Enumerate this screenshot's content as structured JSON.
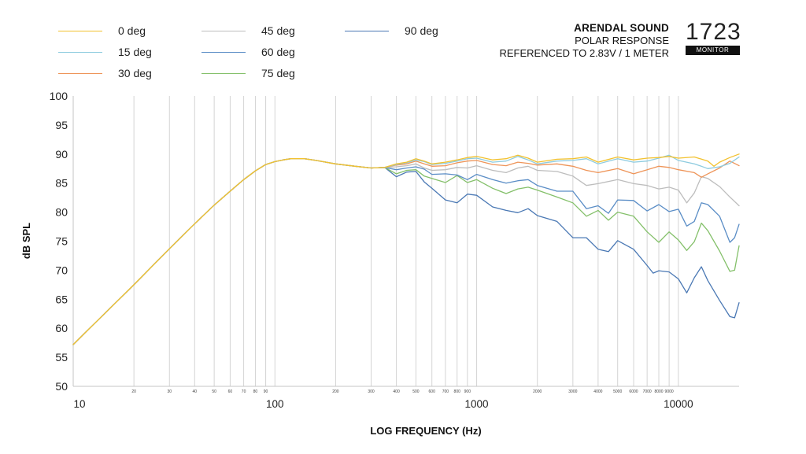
{
  "legend": [
    {
      "label": "0 deg",
      "color": "#F2C12E"
    },
    {
      "label": "15 deg",
      "color": "#8DCBDF"
    },
    {
      "label": "30 deg",
      "color": "#EE9458"
    },
    {
      "label": "45 deg",
      "color": "#BDBDBD"
    },
    {
      "label": "60 deg",
      "color": "#5A8DC6"
    },
    {
      "label": "75 deg",
      "color": "#84C06A"
    },
    {
      "label": "90 deg",
      "color": "#4A78B4"
    }
  ],
  "brand": {
    "name": "ARENDAL SOUND",
    "line1": "POLAR RESPONSE",
    "line2": "REFERENCED TO 2.83V / 1 METER"
  },
  "model": {
    "number": "1723",
    "badge": "MONITOR"
  },
  "chart_data": {
    "type": "line",
    "xlabel": "LOG FREQUENCY (Hz)",
    "ylabel": "dB SPL",
    "xscale": "log",
    "xlim": [
      10,
      20000
    ],
    "ylim": [
      50,
      100
    ],
    "y_ticks": [
      50,
      55,
      60,
      65,
      70,
      75,
      80,
      85,
      90,
      95,
      100
    ],
    "x_major_ticks": [
      10,
      100,
      1000,
      10000
    ],
    "x_major_labels": [
      "10",
      "100",
      "1000",
      "10000"
    ],
    "x_minor_ticks": [
      20,
      30,
      40,
      50,
      60,
      70,
      80,
      90,
      200,
      300,
      400,
      500,
      600,
      700,
      800,
      900,
      2000,
      3000,
      4000,
      5000,
      6000,
      7000,
      8000,
      9000
    ],
    "x_minor_labels": [
      "20",
      "30",
      "40",
      "50",
      "60",
      "70",
      "80",
      "90",
      "200",
      "300",
      "400",
      "500",
      "600",
      "700",
      "800",
      "900",
      "2000",
      "3000",
      "4000",
      "5000",
      "6000",
      "7000",
      "8000",
      "9000"
    ],
    "grid": "vertical",
    "legend_position": "top-left",
    "shared_low": [
      [
        10,
        57.2
      ],
      [
        20,
        67.5
      ],
      [
        30,
        73.7
      ],
      [
        40,
        78.0
      ],
      [
        50,
        81.2
      ],
      [
        60,
        83.6
      ],
      [
        70,
        85.6
      ],
      [
        80,
        87.1
      ],
      [
        90,
        88.2
      ],
      [
        100,
        88.7
      ],
      [
        110,
        89.0
      ],
      [
        120,
        89.2
      ],
      [
        140,
        89.2
      ],
      [
        160,
        88.9
      ],
      [
        200,
        88.3
      ],
      [
        250,
        87.9
      ],
      [
        300,
        87.6
      ],
      [
        350,
        87.7
      ]
    ],
    "series": [
      {
        "name": "0 deg",
        "values": [
          [
            400,
            88.3
          ],
          [
            450,
            88.6
          ],
          [
            500,
            89.2
          ],
          [
            550,
            88.8
          ],
          [
            600,
            88.3
          ],
          [
            700,
            88.6
          ],
          [
            800,
            89.0
          ],
          [
            900,
            89.4
          ],
          [
            1000,
            89.6
          ],
          [
            1200,
            89.0
          ],
          [
            1400,
            89.2
          ],
          [
            1600,
            89.8
          ],
          [
            1800,
            89.3
          ],
          [
            2000,
            88.6
          ],
          [
            2500,
            89.1
          ],
          [
            3000,
            89.2
          ],
          [
            3500,
            89.5
          ],
          [
            4000,
            88.6
          ],
          [
            5000,
            89.5
          ],
          [
            6000,
            89.0
          ],
          [
            7000,
            89.3
          ],
          [
            8000,
            89.4
          ],
          [
            9000,
            89.6
          ],
          [
            10000,
            89.3
          ],
          [
            12000,
            89.5
          ],
          [
            14000,
            88.8
          ],
          [
            15000,
            87.9
          ],
          [
            16000,
            88.6
          ],
          [
            18000,
            89.4
          ],
          [
            20000,
            90.0
          ]
        ]
      },
      {
        "name": "15 deg",
        "values": [
          [
            400,
            88.2
          ],
          [
            450,
            88.5
          ],
          [
            500,
            89.0
          ],
          [
            550,
            88.7
          ],
          [
            600,
            88.2
          ],
          [
            700,
            88.4
          ],
          [
            800,
            88.8
          ],
          [
            900,
            89.2
          ],
          [
            1000,
            89.3
          ],
          [
            1200,
            88.6
          ],
          [
            1400,
            88.8
          ],
          [
            1600,
            89.6
          ],
          [
            1800,
            89.0
          ],
          [
            2000,
            88.3
          ],
          [
            2500,
            88.8
          ],
          [
            3000,
            88.9
          ],
          [
            3500,
            89.2
          ],
          [
            4000,
            88.3
          ],
          [
            5000,
            89.2
          ],
          [
            6000,
            88.6
          ],
          [
            7000,
            88.8
          ],
          [
            8000,
            89.3
          ],
          [
            9000,
            89.8
          ],
          [
            10000,
            88.9
          ],
          [
            12000,
            88.3
          ],
          [
            13000,
            87.9
          ],
          [
            14000,
            87.5
          ],
          [
            16000,
            87.8
          ],
          [
            18000,
            88.4
          ],
          [
            20000,
            89.5
          ]
        ]
      },
      {
        "name": "30 deg",
        "values": [
          [
            400,
            88.1
          ],
          [
            450,
            88.3
          ],
          [
            500,
            88.8
          ],
          [
            550,
            88.3
          ],
          [
            600,
            87.9
          ],
          [
            700,
            88.0
          ],
          [
            800,
            88.5
          ],
          [
            900,
            88.8
          ],
          [
            1000,
            88.9
          ],
          [
            1200,
            88.2
          ],
          [
            1400,
            88.0
          ],
          [
            1600,
            88.6
          ],
          [
            1800,
            88.4
          ],
          [
            2000,
            88.1
          ],
          [
            2500,
            88.3
          ],
          [
            3000,
            87.9
          ],
          [
            3500,
            87.2
          ],
          [
            4000,
            86.8
          ],
          [
            5000,
            87.5
          ],
          [
            6000,
            86.6
          ],
          [
            7000,
            87.3
          ],
          [
            8000,
            87.9
          ],
          [
            9000,
            87.7
          ],
          [
            10000,
            87.3
          ],
          [
            12000,
            86.8
          ],
          [
            13000,
            86.0
          ],
          [
            14000,
            86.6
          ],
          [
            16000,
            87.6
          ],
          [
            18000,
            88.8
          ],
          [
            20000,
            88.0
          ]
        ]
      },
      {
        "name": "45 deg",
        "values": [
          [
            400,
            87.8
          ],
          [
            450,
            88.0
          ],
          [
            500,
            88.3
          ],
          [
            550,
            87.6
          ],
          [
            600,
            87.2
          ],
          [
            700,
            87.3
          ],
          [
            800,
            87.7
          ],
          [
            900,
            87.6
          ],
          [
            1000,
            88.0
          ],
          [
            1200,
            87.2
          ],
          [
            1400,
            86.8
          ],
          [
            1600,
            87.6
          ],
          [
            1800,
            87.9
          ],
          [
            2000,
            87.2
          ],
          [
            2500,
            87.0
          ],
          [
            3000,
            86.2
          ],
          [
            3500,
            84.6
          ],
          [
            4000,
            84.9
          ],
          [
            5000,
            85.6
          ],
          [
            6000,
            84.9
          ],
          [
            7000,
            84.6
          ],
          [
            8000,
            84.0
          ],
          [
            9000,
            84.3
          ],
          [
            10000,
            83.8
          ],
          [
            11000,
            81.6
          ],
          [
            12000,
            83.3
          ],
          [
            13000,
            86.1
          ],
          [
            14000,
            85.8
          ],
          [
            16000,
            84.4
          ],
          [
            18000,
            82.6
          ],
          [
            20000,
            81.1
          ]
        ]
      },
      {
        "name": "60 deg",
        "values": [
          [
            400,
            87.3
          ],
          [
            450,
            87.6
          ],
          [
            500,
            87.8
          ],
          [
            550,
            87.4
          ],
          [
            600,
            86.5
          ],
          [
            700,
            86.6
          ],
          [
            800,
            86.4
          ],
          [
            900,
            85.6
          ],
          [
            1000,
            86.5
          ],
          [
            1200,
            85.6
          ],
          [
            1400,
            85.0
          ],
          [
            1600,
            85.4
          ],
          [
            1800,
            85.6
          ],
          [
            2000,
            84.6
          ],
          [
            2500,
            83.6
          ],
          [
            3000,
            83.6
          ],
          [
            3500,
            80.6
          ],
          [
            4000,
            81.1
          ],
          [
            4500,
            79.8
          ],
          [
            5000,
            82.1
          ],
          [
            6000,
            82.0
          ],
          [
            7000,
            80.2
          ],
          [
            8000,
            81.3
          ],
          [
            9000,
            80.1
          ],
          [
            10000,
            80.5
          ],
          [
            11000,
            77.6
          ],
          [
            12000,
            78.4
          ],
          [
            13000,
            81.6
          ],
          [
            14000,
            81.3
          ],
          [
            16000,
            79.3
          ],
          [
            18000,
            74.8
          ],
          [
            19000,
            75.6
          ],
          [
            20000,
            77.9
          ]
        ]
      },
      {
        "name": "75 deg",
        "values": [
          [
            400,
            86.6
          ],
          [
            450,
            87.2
          ],
          [
            500,
            87.3
          ],
          [
            550,
            86.2
          ],
          [
            600,
            85.8
          ],
          [
            700,
            85.1
          ],
          [
            800,
            86.3
          ],
          [
            900,
            85.1
          ],
          [
            1000,
            85.6
          ],
          [
            1200,
            84.1
          ],
          [
            1400,
            83.2
          ],
          [
            1600,
            84.0
          ],
          [
            1800,
            84.3
          ],
          [
            2000,
            83.8
          ],
          [
            2500,
            82.6
          ],
          [
            3000,
            81.6
          ],
          [
            3500,
            79.3
          ],
          [
            4000,
            80.3
          ],
          [
            4500,
            78.6
          ],
          [
            5000,
            80.0
          ],
          [
            6000,
            79.3
          ],
          [
            7000,
            76.6
          ],
          [
            8000,
            74.8
          ],
          [
            9000,
            76.6
          ],
          [
            10000,
            75.2
          ],
          [
            11000,
            73.4
          ],
          [
            12000,
            74.9
          ],
          [
            13000,
            78.1
          ],
          [
            14000,
            76.8
          ],
          [
            16000,
            73.3
          ],
          [
            18000,
            69.8
          ],
          [
            19000,
            70.0
          ],
          [
            20000,
            74.2
          ]
        ]
      },
      {
        "name": "90 deg",
        "values": [
          [
            400,
            86.1
          ],
          [
            450,
            86.9
          ],
          [
            500,
            87.0
          ],
          [
            550,
            85.2
          ],
          [
            600,
            84.1
          ],
          [
            700,
            82.1
          ],
          [
            800,
            81.6
          ],
          [
            900,
            83.1
          ],
          [
            1000,
            82.9
          ],
          [
            1200,
            80.9
          ],
          [
            1400,
            80.3
          ],
          [
            1600,
            79.9
          ],
          [
            1800,
            80.6
          ],
          [
            2000,
            79.4
          ],
          [
            2500,
            78.4
          ],
          [
            3000,
            75.6
          ],
          [
            3500,
            75.6
          ],
          [
            4000,
            73.6
          ],
          [
            4500,
            73.2
          ],
          [
            5000,
            75.1
          ],
          [
            6000,
            73.6
          ],
          [
            7000,
            70.8
          ],
          [
            7500,
            69.5
          ],
          [
            8000,
            69.9
          ],
          [
            9000,
            69.7
          ],
          [
            10000,
            68.5
          ],
          [
            11000,
            66.1
          ],
          [
            12000,
            68.7
          ],
          [
            13000,
            70.6
          ],
          [
            14000,
            68.2
          ],
          [
            16000,
            64.8
          ],
          [
            18000,
            62.0
          ],
          [
            19000,
            61.8
          ],
          [
            20000,
            64.4
          ]
        ]
      }
    ]
  }
}
